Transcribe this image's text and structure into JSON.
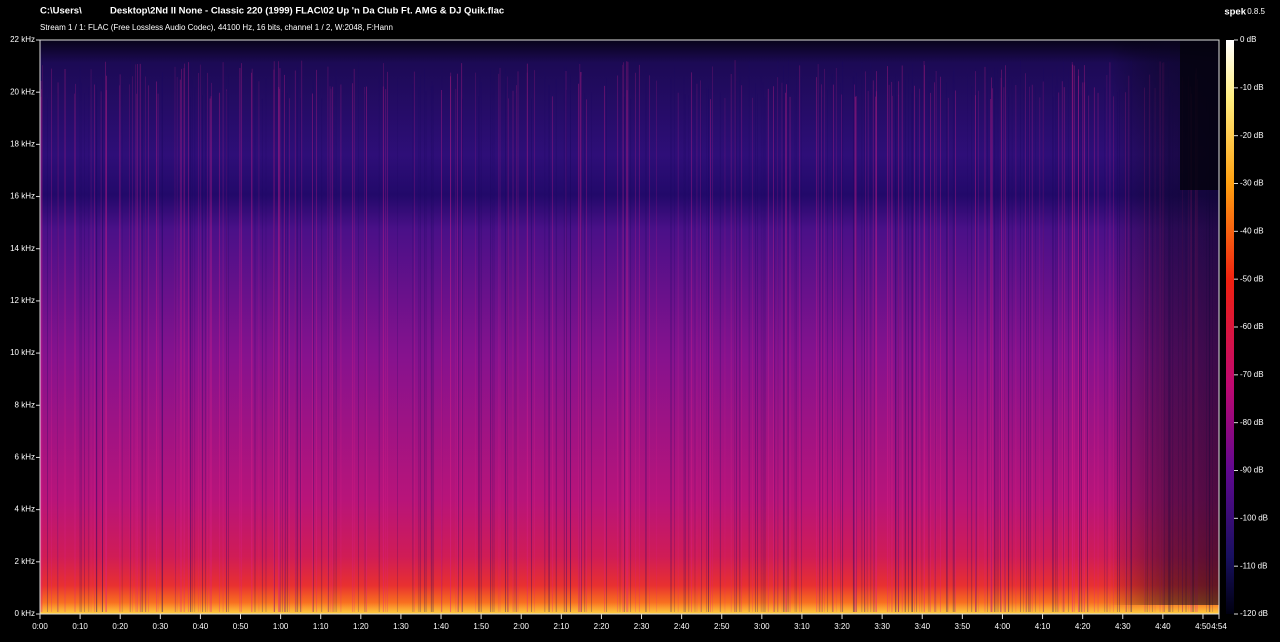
{
  "header": {
    "path_start": "C:\\Users\\",
    "path_rest": "Desktop\\2Nd II None - Classic 220 (1999) FLAC\\02 Up 'n Da Club Ft. AMG & DJ Quik.flac",
    "app_name": "spek",
    "app_version": "0.8.5",
    "stream_info": "Stream 1 / 1: FLAC (Free Lossless Audio Codec), 44100 Hz, 16 bits, channel 1 / 2, W:2048, F:Hann"
  },
  "frequency_axis": {
    "labels": [
      "0 kHz",
      "2 kHz",
      "4 kHz",
      "6 kHz",
      "8 kHz",
      "10 kHz",
      "12 kHz",
      "14 kHz",
      "16 kHz",
      "18 kHz",
      "20 kHz",
      "22 kHz"
    ]
  },
  "time_axis": {
    "labels": [
      "0:00",
      "0:10",
      "0:20",
      "0:30",
      "0:40",
      "0:50",
      "1:00",
      "1:10",
      "1:20",
      "1:30",
      "1:40",
      "1:50",
      "2:00",
      "2:10",
      "2:20",
      "2:30",
      "2:40",
      "2:50",
      "3:00",
      "3:10",
      "3:20",
      "3:30",
      "3:40",
      "3:50",
      "4:00",
      "4:10",
      "4:20",
      "4:30",
      "4:40",
      "4:50",
      "4:54"
    ]
  },
  "colorbar": {
    "labels": [
      "0 dB",
      "-10 dB",
      "-20 dB",
      "-30 dB",
      "-40 dB",
      "-50 dB",
      "-60 dB",
      "-70 dB",
      "-80 dB",
      "-90 dB",
      "-100 dB",
      "-110 dB",
      "-120 dB"
    ]
  }
}
